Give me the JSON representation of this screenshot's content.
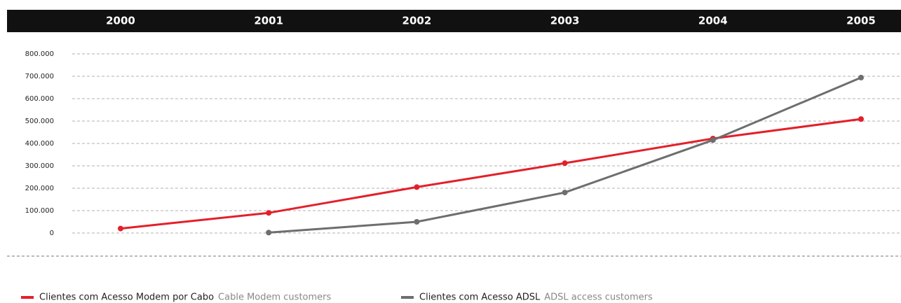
{
  "chart_data": {
    "type": "line",
    "categories": [
      "2000",
      "2001",
      "2002",
      "2003",
      "2004",
      "2005"
    ],
    "series": [
      {
        "name": "Clientes com Acesso Modem por Cabo",
        "subtitle": "Cable Modem customers",
        "color": "#e3202a",
        "values": [
          20000,
          90000,
          205000,
          312000,
          422000,
          509000
        ]
      },
      {
        "name": "Clientes com Acesso ADSL",
        "subtitle": "ADSL access customers",
        "color": "#6d6e70",
        "values": [
          null,
          2000,
          50000,
          181000,
          415000,
          694000
        ]
      }
    ],
    "ylim": [
      0,
      800000
    ],
    "yticks": [
      0,
      {
        "value": 100000,
        "label": "100.000"
      },
      {
        "value": 200000,
        "label": "200.000"
      },
      {
        "value": 300000,
        "label": "300.000"
      },
      {
        "value": 400000,
        "label": "400.000"
      },
      {
        "value": 500000,
        "label": "500.000"
      },
      {
        "value": 600000,
        "label": "600.000"
      },
      {
        "value": 700000,
        "label": "700.000"
      },
      {
        "value": 800000,
        "label": "800.000"
      }
    ],
    "grid": true
  }
}
